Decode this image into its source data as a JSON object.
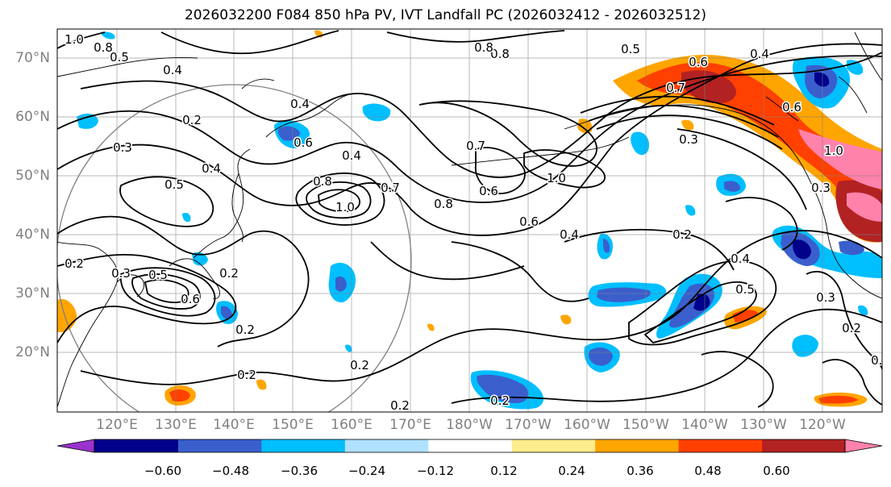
{
  "title": "2026032200 F084 850 hPa PV, IVT Landfall PC (2026032412 - 2026032512)",
  "lat_labels": [
    "70°N",
    "60°N",
    "50°N",
    "40°N",
    "30°N",
    "20°N"
  ],
  "lon_labels": [
    "120°E",
    "130°E",
    "140°E",
    "150°E",
    "160°E",
    "170°E",
    "180°W",
    "170°W",
    "160°W",
    "150°W",
    "140°W",
    "130°W",
    "120°W"
  ],
  "colorbar": {
    "ticks": [
      "−0.60",
      "−0.48",
      "−0.36",
      "−0.24",
      "−0.12",
      "0.12",
      "0.24",
      "0.36",
      "0.48",
      "0.60"
    ],
    "colors": [
      "#9a32cd",
      "#00008b",
      "#3a5fcd",
      "#00bfff",
      "#b0e2ff",
      "#ffffff",
      "#ffec8b",
      "#ffa500",
      "#ff4000",
      "#b22222",
      "#ff82ab"
    ]
  },
  "contour_labels": [
    {
      "text": "0.8"
    },
    {
      "text": "0.5"
    },
    {
      "text": "1.0"
    },
    {
      "text": "0.4"
    },
    {
      "text": "0.4"
    },
    {
      "text": "0.2"
    },
    {
      "text": "0.3"
    },
    {
      "text": "0.6"
    },
    {
      "text": "0.4"
    },
    {
      "text": "0.5"
    },
    {
      "text": "0.4"
    },
    {
      "text": "0.8"
    },
    {
      "text": "1.0"
    },
    {
      "text": "0.7"
    },
    {
      "text": "0.8"
    },
    {
      "text": "0.7"
    },
    {
      "text": "0.6"
    },
    {
      "text": "1.0"
    },
    {
      "text": "0.6"
    },
    {
      "text": "0.4"
    },
    {
      "text": "0.2"
    },
    {
      "text": "0.3"
    },
    {
      "text": "0.5"
    },
    {
      "text": "0.6"
    },
    {
      "text": "0.2"
    },
    {
      "text": "0.2"
    },
    {
      "text": "0.2"
    },
    {
      "text": "0.2"
    },
    {
      "text": "0.2"
    },
    {
      "text": "0.2"
    },
    {
      "text": "0.4"
    },
    {
      "text": "0.5"
    },
    {
      "text": "0.3"
    },
    {
      "text": "0.2"
    },
    {
      "text": "0.2"
    },
    {
      "text": "0.3"
    },
    {
      "text": "0.6"
    },
    {
      "text": "0.4"
    },
    {
      "text": "0.5"
    },
    {
      "text": "0.8"
    },
    {
      "text": "1.0"
    },
    {
      "text": "0.3"
    },
    {
      "text": "0.7"
    },
    {
      "text": "0.2"
    },
    {
      "text": "0.8"
    },
    {
      "text": "0.6"
    }
  ]
}
